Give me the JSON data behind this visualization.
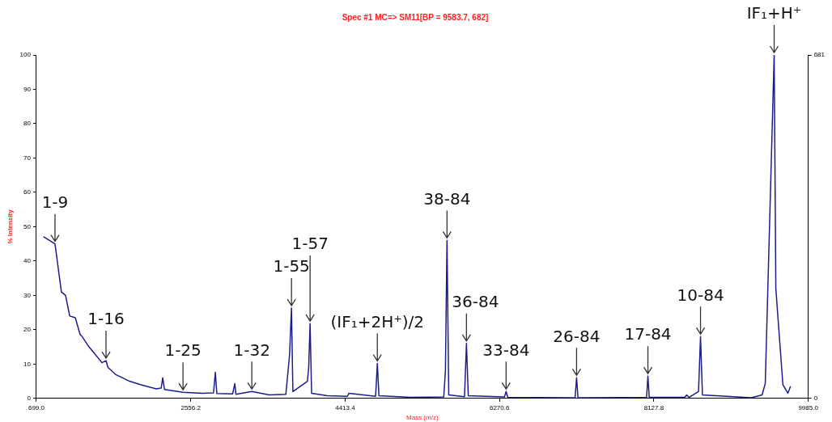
{
  "chart_data": {
    "type": "line",
    "title": "Spec #1 MC=> SM11[BP = 9583.7, 682]",
    "xlabel": "Mass (m/z)",
    "ylabel": "% Intensity",
    "xlim": [
      699.0,
      9985.0
    ],
    "xticks": [
      {
        "value": 699,
        "label": "699.0"
      },
      2556.2,
      4413.4,
      6270.6,
      8127.8,
      {
        "value": 9985,
        "label": "9985.0"
      }
    ],
    "ylim": [
      0,
      100
    ],
    "yticks": [
      0,
      10,
      20,
      30,
      40,
      50,
      60,
      70,
      80,
      90,
      100
    ],
    "y2lim": [
      0,
      681
    ],
    "y2ticks": [
      0,
      681
    ],
    "grid": false,
    "legend": false,
    "marker": "none",
    "line_style": "solid",
    "series": [
      {
        "color": "#1c1c8c",
        "x": [
          790,
          923,
          1000,
          1050,
          1100,
          1167,
          1225,
          1250,
          1332,
          1400,
          1488,
          1537,
          1560,
          1650,
          1820,
          1950,
          2141,
          2200,
          2219,
          2240,
          2463,
          2700,
          2830,
          2852,
          2870,
          3060,
          3086,
          3100,
          3291,
          3500,
          3700,
          3745,
          3768,
          3785,
          3960,
          3975,
          3992,
          4010,
          4200,
          4440,
          4460,
          4780,
          4801,
          4820,
          5200,
          5600,
          5620,
          5639,
          5660,
          5850,
          5873,
          5895,
          6330,
          6350,
          6370,
          7180,
          7198,
          7215,
          8040,
          8056,
          8072,
          8500,
          8523,
          8550,
          8665,
          8689,
          8712,
          9300,
          9430,
          9468,
          9575,
          9595,
          9680,
          9740,
          9770
        ],
        "values": [
          47,
          45,
          31,
          30,
          24,
          23.5,
          18.6,
          18,
          15,
          13,
          10.4,
          11,
          9,
          7,
          5,
          4,
          2.8,
          3,
          6,
          2.6,
          1.8,
          1.5,
          1.6,
          7.6,
          1.4,
          1.3,
          4.3,
          1.2,
          2,
          1,
          1.2,
          12.6,
          26.3,
          2,
          5,
          9,
          21.8,
          1.5,
          0.8,
          0.6,
          1.5,
          0.6,
          10.2,
          0.8,
          0.3,
          0.4,
          8,
          46,
          1,
          0.5,
          16,
          0.8,
          0.4,
          2,
          0.3,
          0.2,
          6,
          0.2,
          0.3,
          6.5,
          0.3,
          0.3,
          1,
          0.3,
          2,
          18,
          1,
          0.2,
          1,
          4.4,
          100,
          32,
          4,
          1.5,
          3.4
        ]
      }
    ],
    "annotations": [
      {
        "text": "1-9",
        "x": 923,
        "y": 45
      },
      {
        "text": "1-16",
        "x": 1537,
        "y": 11
      },
      {
        "text": "1-25",
        "x": 2463,
        "y": 1.8
      },
      {
        "text": "1-32",
        "x": 3291,
        "y": 2
      },
      {
        "text": "1-55",
        "x": 3768,
        "y": 26.3
      },
      {
        "text": "1-57",
        "x": 3992,
        "y": 21.8
      },
      {
        "text": "(IF₁+2H⁺)/2",
        "x": 4801,
        "y": 10.2
      },
      {
        "text": "38-84",
        "x": 5639,
        "y": 46
      },
      {
        "text": "36-84",
        "x": 5873,
        "y": 16
      },
      {
        "text": "33-84",
        "x": 6350,
        "y": 2
      },
      {
        "text": "26-84",
        "x": 7198,
        "y": 6
      },
      {
        "text": "17-84",
        "x": 8056,
        "y": 6.5
      },
      {
        "text": "10-84",
        "x": 8689,
        "y": 18
      },
      {
        "text": "IF₁+H⁺",
        "x": 9575,
        "y": 100
      }
    ]
  }
}
